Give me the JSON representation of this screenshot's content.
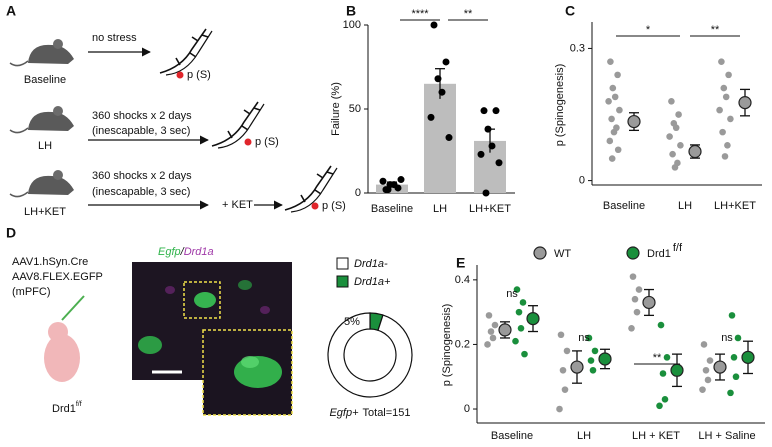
{
  "panel_a": {
    "label": "A",
    "rows": [
      {
        "name": "Baseline",
        "condition": [
          "no stress"
        ],
        "outcome": "p (S)"
      },
      {
        "name": "LH",
        "condition": [
          "360 shocks x 2 days",
          "(inescapable, 3 sec)"
        ],
        "outcome": "p (S)"
      },
      {
        "name": "LH+KET",
        "condition": [
          "360 shocks x 2 days",
          "(inescapable, 3 sec)"
        ],
        "drug": "+ KET",
        "outcome": "p (S)"
      }
    ]
  },
  "panel_d": {
    "label": "D",
    "virus": [
      "AAV1.hSyn.Cre",
      "AAV8.FLEX.EGFP",
      "(mPFC)"
    ],
    "mouse": "Drd1",
    "mouse_superscript": "f/f",
    "image_label": [
      "Egfp",
      "/",
      "Drd1a"
    ]
  },
  "chart_data": [
    {
      "type": "bar",
      "panel": "B",
      "ylabel": "Failure (%)",
      "categories": [
        "Baseline",
        "LH",
        "LH+KET"
      ],
      "values": [
        5,
        65,
        31
      ],
      "errors": [
        1.5,
        9,
        7
      ],
      "points": [
        [
          2,
          3,
          5,
          5,
          7,
          8,
          2
        ],
        [
          100,
          78,
          68,
          60,
          45,
          33
        ],
        [
          49,
          49,
          38,
          28,
          23,
          18,
          0
        ]
      ],
      "color": "#bdbdbd",
      "point_color": "#000000",
      "ylim": [
        0,
        100
      ],
      "yticks": [
        0,
        50,
        100
      ],
      "annotations": [
        "****",
        "**"
      ]
    },
    {
      "type": "dot",
      "panel": "C",
      "ylabel": "p (Spinogenesis)",
      "categories": [
        "Baseline",
        "LH",
        "LH+KET"
      ],
      "values": [
        0.134,
        0.066,
        0.177
      ],
      "errors": [
        0.02,
        0.015,
        0.03
      ],
      "points": [
        [
          0.27,
          0.24,
          0.21,
          0.19,
          0.18,
          0.16,
          0.14,
          0.12,
          0.11,
          0.09,
          0.07,
          0.05
        ],
        [
          0.18,
          0.15,
          0.13,
          0.12,
          0.1,
          0.08,
          0.06,
          0.04,
          0.03
        ],
        [
          0.27,
          0.24,
          0.21,
          0.19,
          0.16,
          0.14,
          0.11,
          0.08,
          0.055
        ]
      ],
      "color": "#9a9a9a",
      "ylim": [
        -0.01,
        0.36
      ],
      "yticks": [
        0,
        0.3
      ],
      "annotations": [
        "*",
        "**"
      ]
    },
    {
      "type": "pie",
      "categories": [
        "Drd1a-",
        "Drd1a+"
      ],
      "values": [
        95,
        5
      ],
      "value_labels": [
        null,
        "5%"
      ],
      "colors": [
        "#ffffff",
        "#1a8f3c"
      ],
      "total_label": "Egfp+",
      "total_text": "Total=151"
    },
    {
      "type": "grouped_dot",
      "panel": "E",
      "ylabel": "p (Spinogenesis)",
      "categories": [
        "Baseline",
        "LH",
        "LH + KET",
        "LH + Saline"
      ],
      "series": [
        {
          "name": "WT",
          "color": "#9a9a9a",
          "values": [
            0.245,
            0.13,
            0.33,
            0.13
          ],
          "errors": [
            0.025,
            0.05,
            0.04,
            0.04
          ],
          "points": [
            [
              0.29,
              0.26,
              0.24,
              0.22,
              0.2
            ],
            [
              0.23,
              0.18,
              0.12,
              0.06,
              0.0
            ],
            [
              0.41,
              0.37,
              0.34,
              0.3,
              0.25
            ],
            [
              0.2,
              0.15,
              0.12,
              0.09,
              0.06
            ]
          ]
        },
        {
          "name": "Drd1",
          "superscript": "f/f",
          "color": "#1a8f3c",
          "values": [
            0.28,
            0.155,
            0.12,
            0.16
          ],
          "errors": [
            0.04,
            0.03,
            0.05,
            0.05
          ],
          "points": [
            [
              0.37,
              0.33,
              0.3,
              0.25,
              0.21,
              0.17
            ],
            [
              0.22,
              0.18,
              0.15,
              0.12
            ],
            [
              0.26,
              0.16,
              0.11,
              0.03,
              0.01
            ],
            [
              0.29,
              0.22,
              0.16,
              0.1,
              0.05
            ]
          ]
        }
      ],
      "ylim": [
        -0.034,
        0.446
      ],
      "yticks": [
        0,
        0.2,
        0.4
      ],
      "annotations": [
        "ns",
        "ns",
        "**",
        "ns"
      ]
    }
  ]
}
